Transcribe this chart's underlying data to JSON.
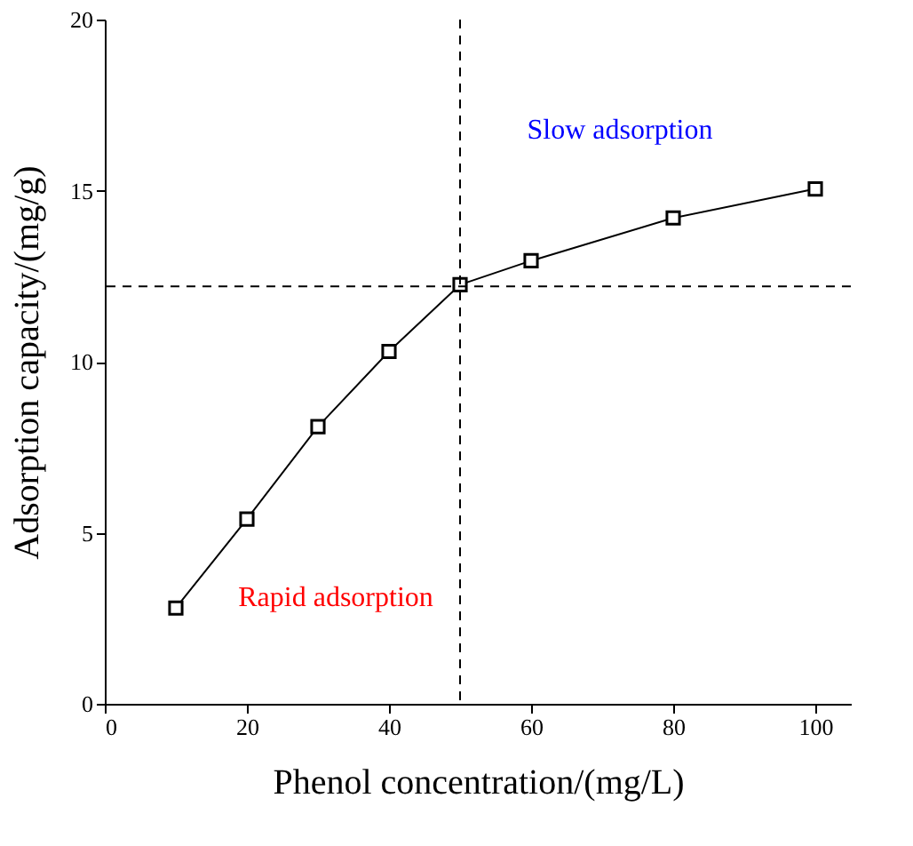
{
  "chart_data": {
    "type": "line",
    "xlabel": "Phenol concentration/(mg/L)",
    "ylabel": "Adsorption capacity/(mg/g)",
    "x": [
      10,
      20,
      30,
      40,
      50,
      60,
      80,
      100
    ],
    "series": [
      {
        "color": "#000000",
        "values": [
          2.8,
          5.4,
          8.1,
          10.3,
          12.25,
          12.95,
          14.2,
          15.05
        ]
      }
    ],
    "marker": "square",
    "line_style": "solid",
    "grid": false,
    "xlim": [
      0,
      105
    ],
    "xticks": [
      0,
      20,
      40,
      60,
      80,
      100
    ],
    "ylim": [
      0,
      20
    ],
    "yticks": [
      0,
      5,
      10,
      15,
      20
    ],
    "ref_lines": [
      {
        "axis": "x",
        "value": 50,
        "color": "#000000",
        "line_style": "dashed"
      },
      {
        "axis": "y",
        "value": 12.2,
        "color": "#000000",
        "line_style": "dashed"
      }
    ],
    "annotations": [
      "Slow adsorption",
      "Rapid adsorption"
    ]
  }
}
